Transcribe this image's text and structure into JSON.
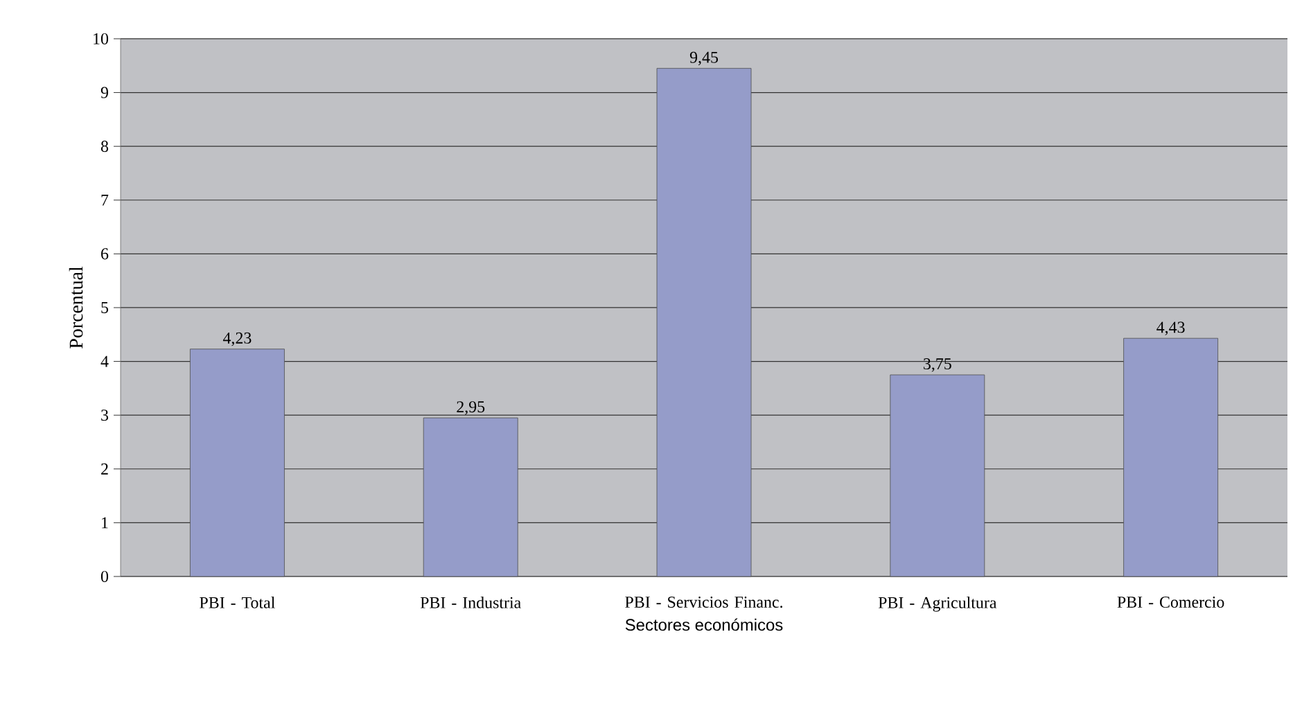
{
  "chart_data": {
    "type": "bar",
    "xlabel": "Sectores económicos",
    "ylabel": "Porcentual",
    "categories": [
      "PBI - Total",
      "PBI - Industria",
      "PBI - Servicios Financ.",
      "PBI - Agricultura",
      "PBI - Comercio"
    ],
    "values": [
      4.23,
      2.95,
      9.45,
      3.75,
      4.43
    ],
    "value_labels": [
      "4,23",
      "2,95",
      "9,45",
      "3,75",
      "4,43"
    ],
    "color": "#959cc9",
    "ylim": [
      0,
      10
    ],
    "yticks": [
      0,
      1,
      2,
      3,
      4,
      5,
      6,
      7,
      8,
      9,
      10
    ],
    "grid": "y"
  }
}
